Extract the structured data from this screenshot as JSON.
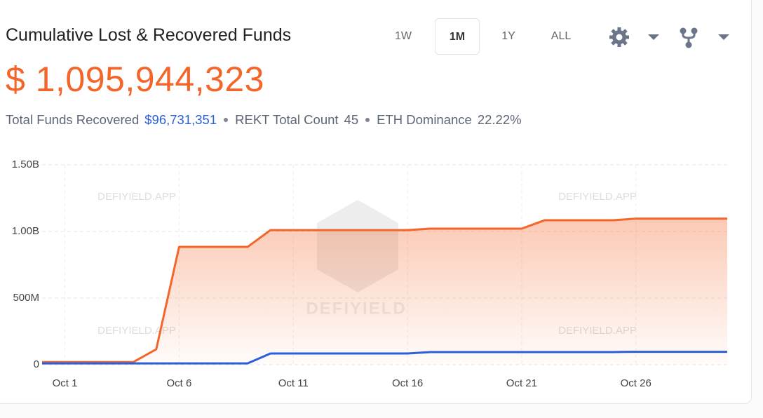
{
  "header": {
    "title": "Cumulative Lost & Recovered Funds",
    "total": "$ 1,095,944,323",
    "stats": [
      {
        "label": "Total Funds Recovered",
        "value": "$96,731,351"
      },
      {
        "label": "REKT Total Count",
        "value": "45"
      },
      {
        "label": "ETH Dominance",
        "value": "22.22%"
      }
    ],
    "ranges": [
      "1W",
      "1M",
      "1Y",
      "ALL"
    ],
    "selected_range": 1
  },
  "chart_data": {
    "type": "area",
    "watermark": "DEFIYIELD.APP",
    "logo_text": "DEFIYIELD",
    "x": [
      0,
      1,
      2,
      3,
      4,
      5,
      6,
      7,
      8,
      9,
      10,
      11,
      12,
      13,
      14,
      15,
      16,
      17,
      18,
      19,
      20,
      21,
      22,
      23,
      24,
      25,
      26,
      27,
      28,
      29,
      30
    ],
    "xlim": [
      0,
      30
    ],
    "xticks": [
      {
        "value": 1,
        "label": "Oct 1"
      },
      {
        "value": 6,
        "label": "Oct 6"
      },
      {
        "value": 11,
        "label": "Oct 11"
      },
      {
        "value": 16,
        "label": "Oct 16"
      },
      {
        "value": 21,
        "label": "Oct 21"
      },
      {
        "value": 26,
        "label": "Oct 26"
      }
    ],
    "ylim": [
      0,
      1500000000
    ],
    "yticks": [
      0,
      {
        "value": 500000000,
        "label": "500M"
      },
      {
        "value": 1000000000,
        "label": "1.00B"
      },
      {
        "value": 1500000000,
        "label": "1.50B"
      }
    ],
    "grid": true,
    "series": [
      {
        "color": "#f4652a",
        "fill": true,
        "values": [
          20000000,
          20000000,
          20000000,
          20000000,
          20000000,
          116000000,
          884000000,
          884000000,
          884000000,
          884000000,
          1010000000,
          1010000000,
          1010000000,
          1010000000,
          1010000000,
          1010000000,
          1010000000,
          1021000000,
          1021000000,
          1021000000,
          1021000000,
          1021000000,
          1084000000,
          1084000000,
          1084000000,
          1084000000,
          1096000000,
          1096000000,
          1096000000,
          1096000000,
          1096000000
        ]
      },
      {
        "color": "#2b5fd9",
        "fill": false,
        "values": [
          10000000,
          10000000,
          10000000,
          10000000,
          10000000,
          10000000,
          10000000,
          10000000,
          10000000,
          10000000,
          84000000,
          84000000,
          84000000,
          84000000,
          84000000,
          84000000,
          84000000,
          95000000,
          95000000,
          95000000,
          95000000,
          95000000,
          95000000,
          95000000,
          95000000,
          95000000,
          96700000,
          96700000,
          96700000,
          96700000,
          96700000
        ]
      }
    ]
  }
}
